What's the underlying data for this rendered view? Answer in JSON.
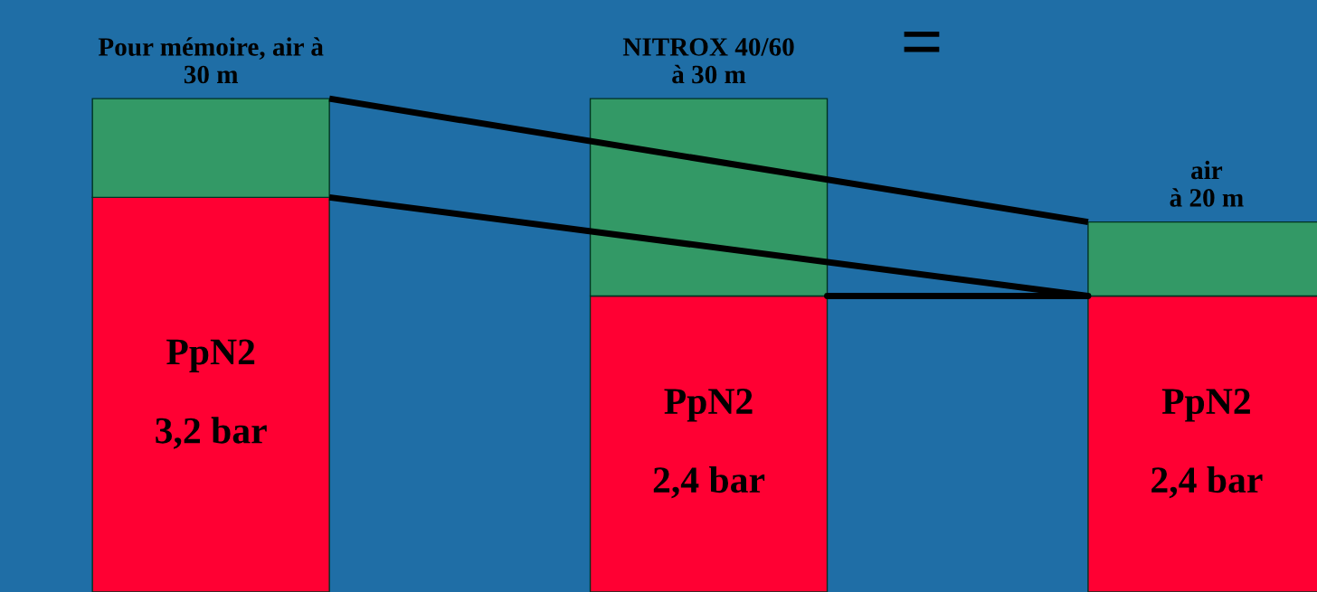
{
  "chart_data": {
    "type": "bar",
    "stacked": true,
    "categories": [
      "Pour mémoire, air à\n30 m",
      "NITROX 40/60\nà 30 m",
      "air\nà 20 m"
    ],
    "series": [
      {
        "color": "#ff0033",
        "values": [
          3.2,
          2.4,
          2.4
        ],
        "value_labels": [
          "PpN2\n\n3,2 bar",
          "PpN2\n\n2,4 bar",
          "PpN2\n\n2,4 bar"
        ]
      },
      {
        "color": "#339966",
        "values": [
          0.8,
          1.6,
          0.6
        ]
      }
    ],
    "ylim": [
      0,
      4.8
    ],
    "annotations": [
      "="
    ]
  }
}
